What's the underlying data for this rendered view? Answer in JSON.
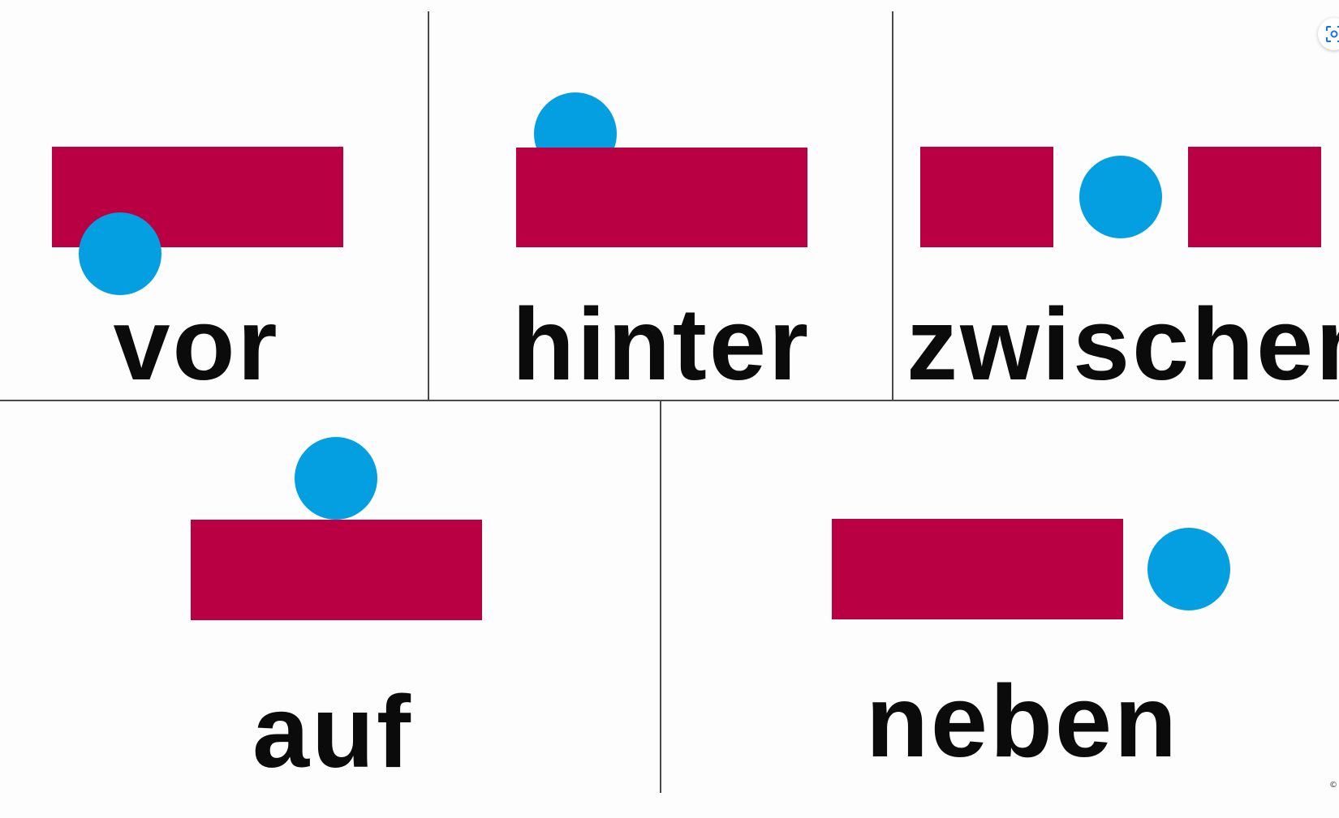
{
  "colors": {
    "rectangle": "#b80042",
    "circle": "#049fe0",
    "text": "#0b0b0b",
    "divider": "#4a4a4a"
  },
  "panels": [
    {
      "label": "vor"
    },
    {
      "label": "hinter"
    },
    {
      "label": "zwischen"
    },
    {
      "label": "auf"
    },
    {
      "label": "neben"
    }
  ],
  "overlay": {
    "icon": "lens-icon",
    "copyright": "©"
  }
}
